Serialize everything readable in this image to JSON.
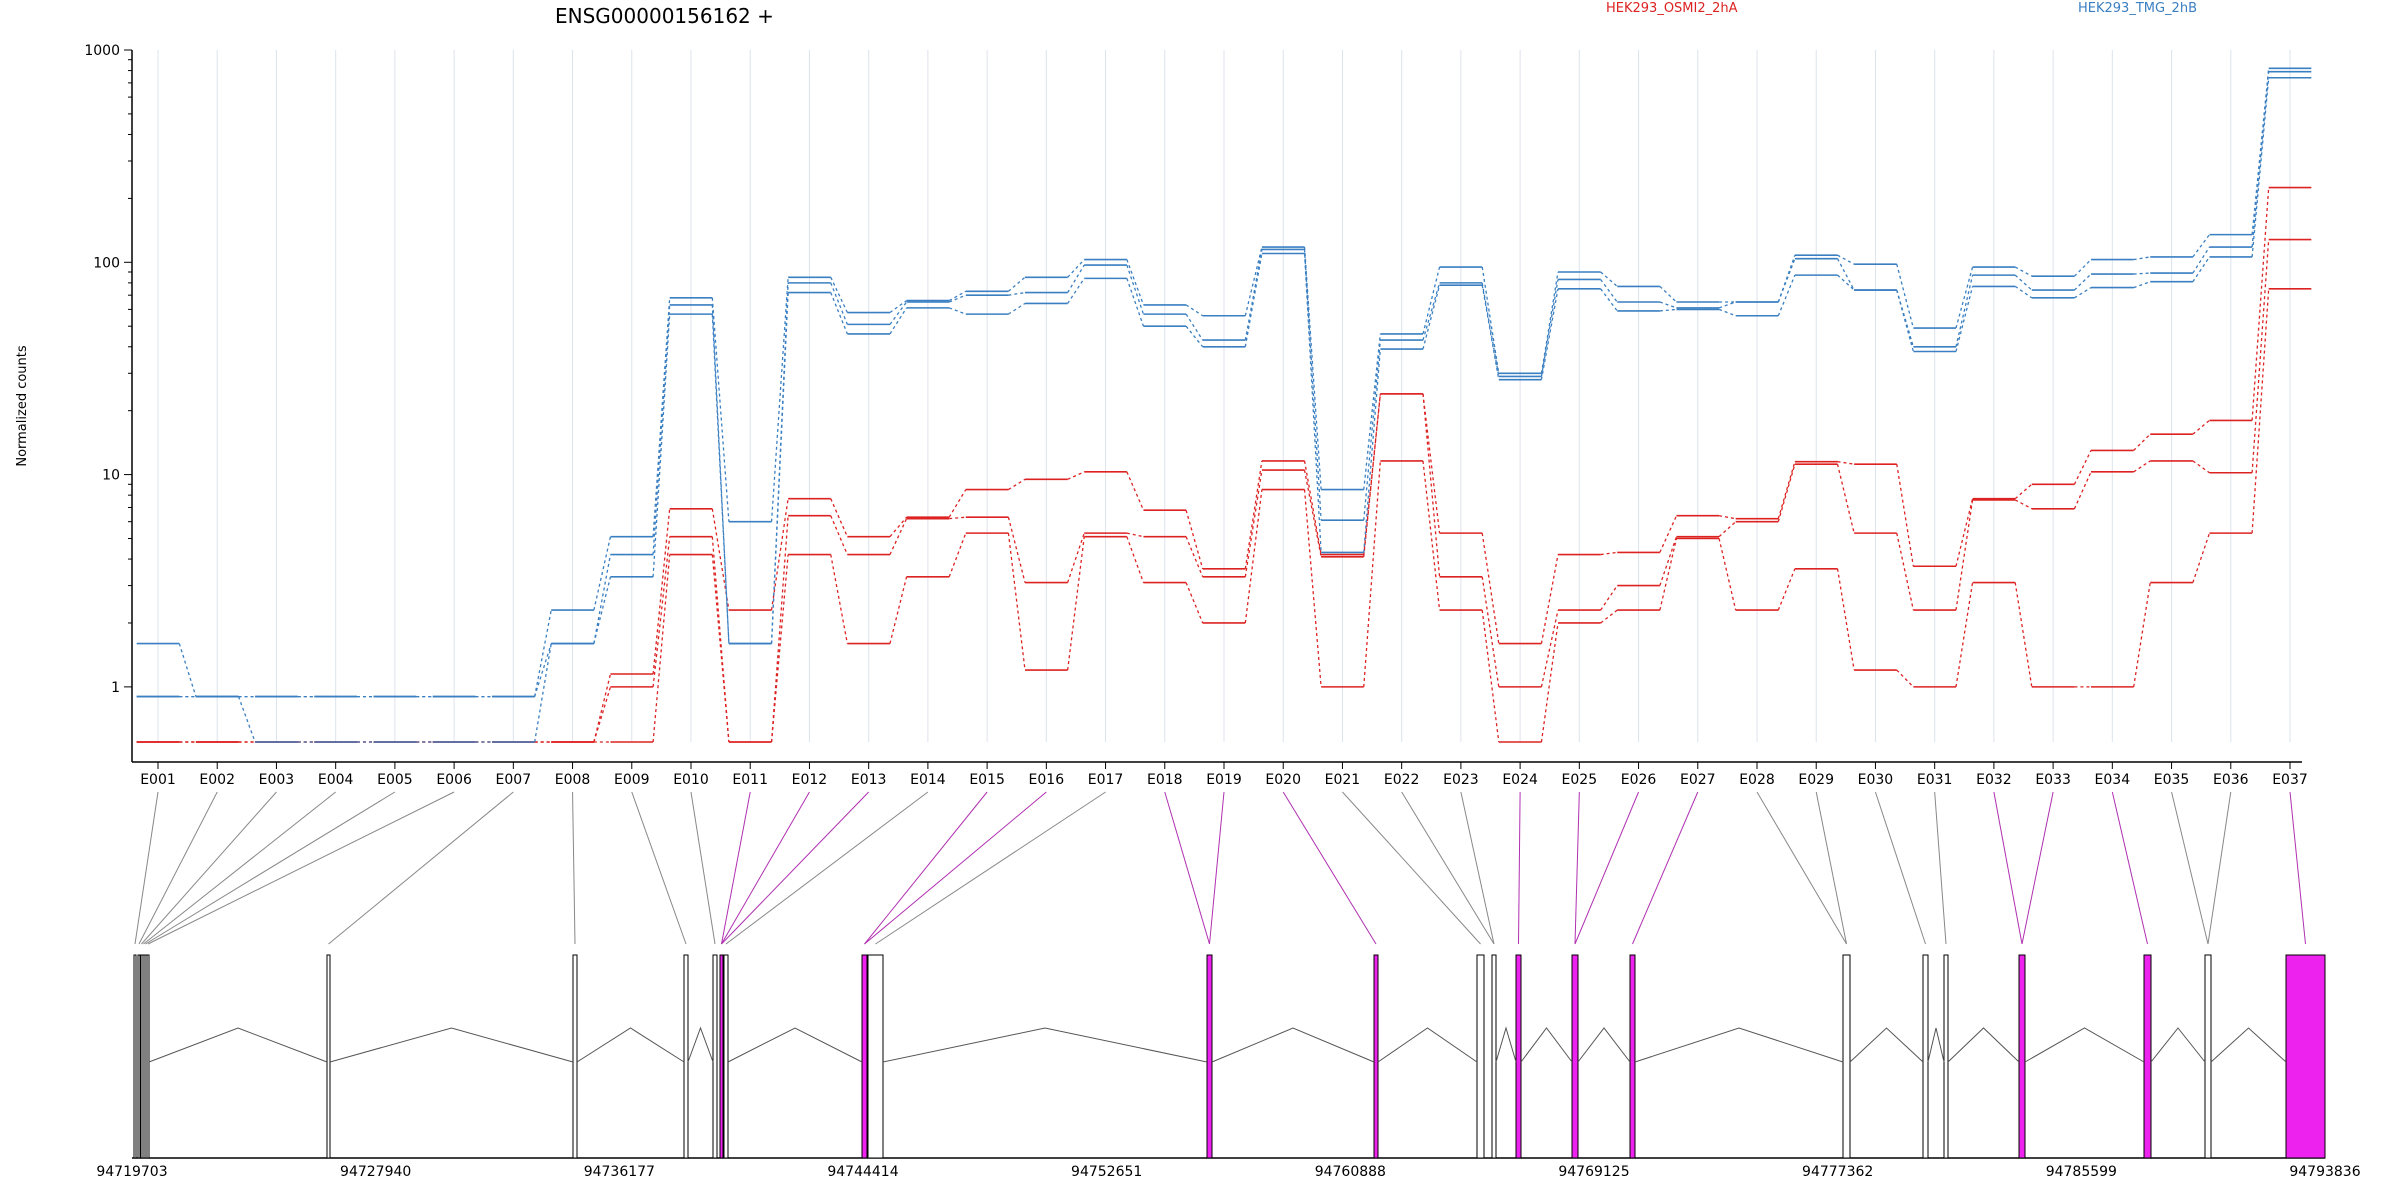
{
  "chart_data": {
    "type": "line",
    "title": "ENSG00000156162 +",
    "ylabel": "Normalized counts",
    "xlabel": "",
    "yscale": "log",
    "ylim": [
      0.55,
      1000
    ],
    "yticks": [
      1,
      10,
      100,
      1000
    ],
    "grid": "vertical",
    "legend_placement": "top-right",
    "categories": [
      "E001",
      "E002",
      "E003",
      "E004",
      "E005",
      "E006",
      "E007",
      "E008",
      "E009",
      "E010",
      "E011",
      "E012",
      "E013",
      "E014",
      "E015",
      "E016",
      "E017",
      "E018",
      "E019",
      "E020",
      "E021",
      "E022",
      "E023",
      "E024",
      "E025",
      "E026",
      "E027",
      "E028",
      "E029",
      "E030",
      "E031",
      "E032",
      "E033",
      "E034",
      "E035",
      "E036",
      "E037"
    ],
    "groups": [
      {
        "name": "HEK293_OSMI2_2hA",
        "color": "#dd2222"
      },
      {
        "name": "HEK293_TMG_2hB",
        "color": "#3a7fc1"
      }
    ],
    "series": [
      {
        "group": 0,
        "color": "#dd2222",
        "values": [
          0.55,
          0.55,
          0.55,
          0.55,
          0.55,
          0.55,
          0.55,
          0.55,
          1.15,
          6.9,
          2.3,
          7.7,
          5.1,
          6.3,
          8.5,
          9.5,
          10.3,
          6.8,
          3.6,
          11.6,
          4.2,
          24,
          5.3,
          1.6,
          4.2,
          4.3,
          6.4,
          6.2,
          11.5,
          11.2,
          3.7,
          7.7,
          9.0,
          13.0,
          15.5,
          18.0,
          225
        ]
      },
      {
        "group": 0,
        "color": "#dd2222",
        "values": [
          0.55,
          0.55,
          0.55,
          0.55,
          0.55,
          0.55,
          0.55,
          0.55,
          1.0,
          5.1,
          0.55,
          6.4,
          4.2,
          6.2,
          6.3,
          3.1,
          5.3,
          5.1,
          3.3,
          10.5,
          4.1,
          24,
          3.3,
          1.0,
          2.3,
          3.0,
          5.1,
          6.0,
          11.2,
          5.3,
          2.3,
          7.6,
          6.9,
          10.3,
          11.6,
          10.2,
          128
        ]
      },
      {
        "group": 0,
        "color": "#dd2222",
        "values": [
          0.55,
          0.55,
          0.55,
          0.55,
          0.55,
          0.55,
          0.55,
          0.55,
          0.55,
          4.2,
          0.55,
          4.2,
          1.6,
          3.3,
          5.3,
          1.2,
          5.1,
          3.1,
          2.0,
          8.5,
          1.0,
          11.6,
          2.3,
          0.55,
          2.0,
          2.3,
          5.0,
          2.3,
          3.6,
          1.2,
          1.0,
          3.1,
          1.0,
          1.0,
          3.1,
          5.3,
          75
        ]
      },
      {
        "group": 1,
        "color": "#3a7fc1",
        "values": [
          1.6,
          0.9,
          0.9,
          0.9,
          0.9,
          0.9,
          0.9,
          2.3,
          5.1,
          68,
          6.0,
          85,
          58,
          66,
          73,
          85,
          103,
          63,
          56,
          118,
          8.5,
          46,
          95,
          30,
          90,
          77,
          65,
          65,
          108,
          98,
          49,
          95,
          86,
          103,
          106,
          135,
          820
        ]
      },
      {
        "group": 1,
        "color": "#3a7fc1",
        "values": [
          0.9,
          0.9,
          0.9,
          0.9,
          0.9,
          0.9,
          0.9,
          1.6,
          4.2,
          63,
          1.6,
          80,
          51,
          65,
          70,
          72,
          97,
          57,
          43,
          115,
          6.1,
          43,
          80,
          29,
          83,
          65,
          61,
          65,
          104,
          74,
          40,
          87,
          74,
          88,
          89,
          118,
          790
        ]
      },
      {
        "group": 1,
        "color": "#3a7fc1",
        "values": [
          0.9,
          0.9,
          0.55,
          0.55,
          0.55,
          0.55,
          0.55,
          1.6,
          3.3,
          57,
          1.6,
          72,
          46,
          61,
          57,
          64,
          84,
          50,
          40,
          110,
          4.3,
          39,
          78,
          28,
          75,
          59,
          60,
          56,
          87,
          74,
          38,
          77,
          68,
          76,
          81,
          106,
          740
        ]
      }
    ],
    "genome": {
      "ticks": [
        "94719703",
        "94727940",
        "94736177",
        "94744414",
        "94752651",
        "94760888",
        "94769125",
        "94777362",
        "94785599",
        "94793836"
      ],
      "range": [
        94719703,
        94793836
      ]
    }
  }
}
